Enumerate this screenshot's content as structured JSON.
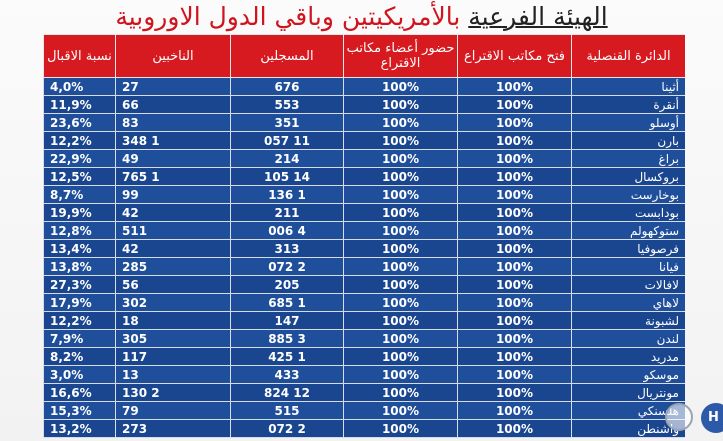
{
  "title": {
    "part1": "الهيئة الفرعية",
    "part2": " بالأمريكيتين وباقي الدول الاوروبية"
  },
  "table": {
    "headers": [
      "الدائرة القنصلية",
      "فتح مكاتب الاقتراع",
      "حضور أعضاء مكاتب الاقتراع",
      "المسجلين",
      "الناخبين",
      "نسبة الاقبال"
    ],
    "rows": [
      {
        "name": "أثينا",
        "open": "100%",
        "presence": "100%",
        "registered": "676",
        "voters": "27",
        "turnout": "4,0%"
      },
      {
        "name": "أنقرة",
        "open": "100%",
        "presence": "100%",
        "registered": "553",
        "voters": "66",
        "turnout": "11,9%"
      },
      {
        "name": "أوسلو",
        "open": "100%",
        "presence": "100%",
        "registered": "351",
        "voters": "83",
        "turnout": "23,6%"
      },
      {
        "name": "بارن",
        "open": "100%",
        "presence": "100%",
        "registered": "11 057",
        "voters": "1 348",
        "turnout": "12,2%"
      },
      {
        "name": "براغ",
        "open": "100%",
        "presence": "100%",
        "registered": "214",
        "voters": "49",
        "turnout": "22,9%"
      },
      {
        "name": "بروكسال",
        "open": "100%",
        "presence": "100%",
        "registered": "14 105",
        "voters": "1 765",
        "turnout": "12,5%"
      },
      {
        "name": "بوخارست",
        "open": "100%",
        "presence": "100%",
        "registered": "1 136",
        "voters": "99",
        "turnout": "8,7%"
      },
      {
        "name": "بودابست",
        "open": "100%",
        "presence": "100%",
        "registered": "211",
        "voters": "42",
        "turnout": "19,9%"
      },
      {
        "name": "ستوكهولم",
        "open": "100%",
        "presence": "100%",
        "registered": "4 006",
        "voters": "511",
        "turnout": "12,8%"
      },
      {
        "name": "فرصوفيا",
        "open": "100%",
        "presence": "100%",
        "registered": "313",
        "voters": "42",
        "turnout": "13,4%"
      },
      {
        "name": "فيانا",
        "open": "100%",
        "presence": "100%",
        "registered": "2 072",
        "voters": "285",
        "turnout": "13,8%"
      },
      {
        "name": "لافالات",
        "open": "100%",
        "presence": "100%",
        "registered": "205",
        "voters": "56",
        "turnout": "27,3%"
      },
      {
        "name": "لاهاي",
        "open": "100%",
        "presence": "100%",
        "registered": "1 685",
        "voters": "302",
        "turnout": "17,9%"
      },
      {
        "name": "لشبونة",
        "open": "100%",
        "presence": "100%",
        "registered": "147",
        "voters": "18",
        "turnout": "12,2%"
      },
      {
        "name": "لندن",
        "open": "100%",
        "presence": "100%",
        "registered": "3 885",
        "voters": "305",
        "turnout": "7,9%"
      },
      {
        "name": "مدريد",
        "open": "100%",
        "presence": "100%",
        "registered": "1 425",
        "voters": "117",
        "turnout": "8,2%"
      },
      {
        "name": "موسكو",
        "open": "100%",
        "presence": "100%",
        "registered": "433",
        "voters": "13",
        "turnout": "3,0%"
      },
      {
        "name": "مونتريال",
        "open": "100%",
        "presence": "100%",
        "registered": "12 824",
        "voters": "2 130",
        "turnout": "16,6%"
      },
      {
        "name": "هلسنكي",
        "open": "100%",
        "presence": "100%",
        "registered": "515",
        "voters": "79",
        "turnout": "15,3%"
      },
      {
        "name": "واشنطن",
        "open": "100%",
        "presence": "100%",
        "registered": "2 072",
        "voters": "273",
        "turnout": "13,2%"
      }
    ]
  },
  "overlay": {
    "fab_label": "H",
    "fab_icon": "help-bubble-icon"
  }
}
